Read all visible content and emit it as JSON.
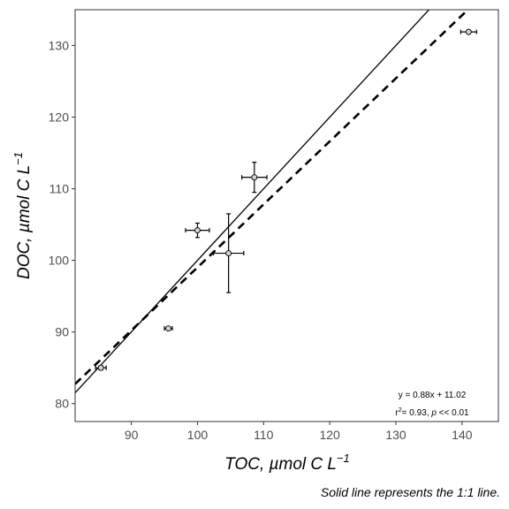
{
  "chart_data": {
    "type": "scatter",
    "xlabel": "TOC, µmol C L",
    "xlabel_sup": "−1",
    "ylabel": "DOC, µmol C L",
    "ylabel_sup": "−1",
    "caption": "Solid line represents the 1:1 line.",
    "xlim": [
      81.5,
      145.5
    ],
    "ylim": [
      77.5,
      135
    ],
    "x_ticks": [
      90,
      100,
      110,
      120,
      130,
      140
    ],
    "y_ticks": [
      80,
      90,
      100,
      110,
      120,
      130
    ],
    "grid": false,
    "points": [
      {
        "x": 85.4,
        "y": 85.0,
        "x_err": 0.8,
        "y_err": 0.3
      },
      {
        "x": 95.6,
        "y": 90.5,
        "x_err": 0.6,
        "y_err": 0.2
      },
      {
        "x": 100.0,
        "y": 104.2,
        "x_err": 1.8,
        "y_err": 1.0
      },
      {
        "x": 104.7,
        "y": 101.0,
        "x_err": 2.3,
        "y_err": 5.5
      },
      {
        "x": 108.6,
        "y": 111.6,
        "x_err": 1.9,
        "y_err": 2.1
      },
      {
        "x": 141.0,
        "y": 131.9,
        "x_err": 1.2,
        "y_err": 0.2
      }
    ],
    "lines": [
      {
        "kind": "one_to_one",
        "style": "solid",
        "slope": 1,
        "intercept": 0
      },
      {
        "kind": "regression",
        "style": "dashed",
        "slope": 0.88,
        "intercept": 11.02
      }
    ],
    "annotation": {
      "equation": "y = 0.88x + 11.02",
      "r2_prefix": "r",
      "r2_sup": "2",
      "r2_rest": "= 0.93, ",
      "p_symbol": "p",
      "p_rest": " << 0.01"
    },
    "colors": {
      "point_fill": "#d3d3d3",
      "line": "#000000",
      "panel_border": "#333333"
    }
  }
}
